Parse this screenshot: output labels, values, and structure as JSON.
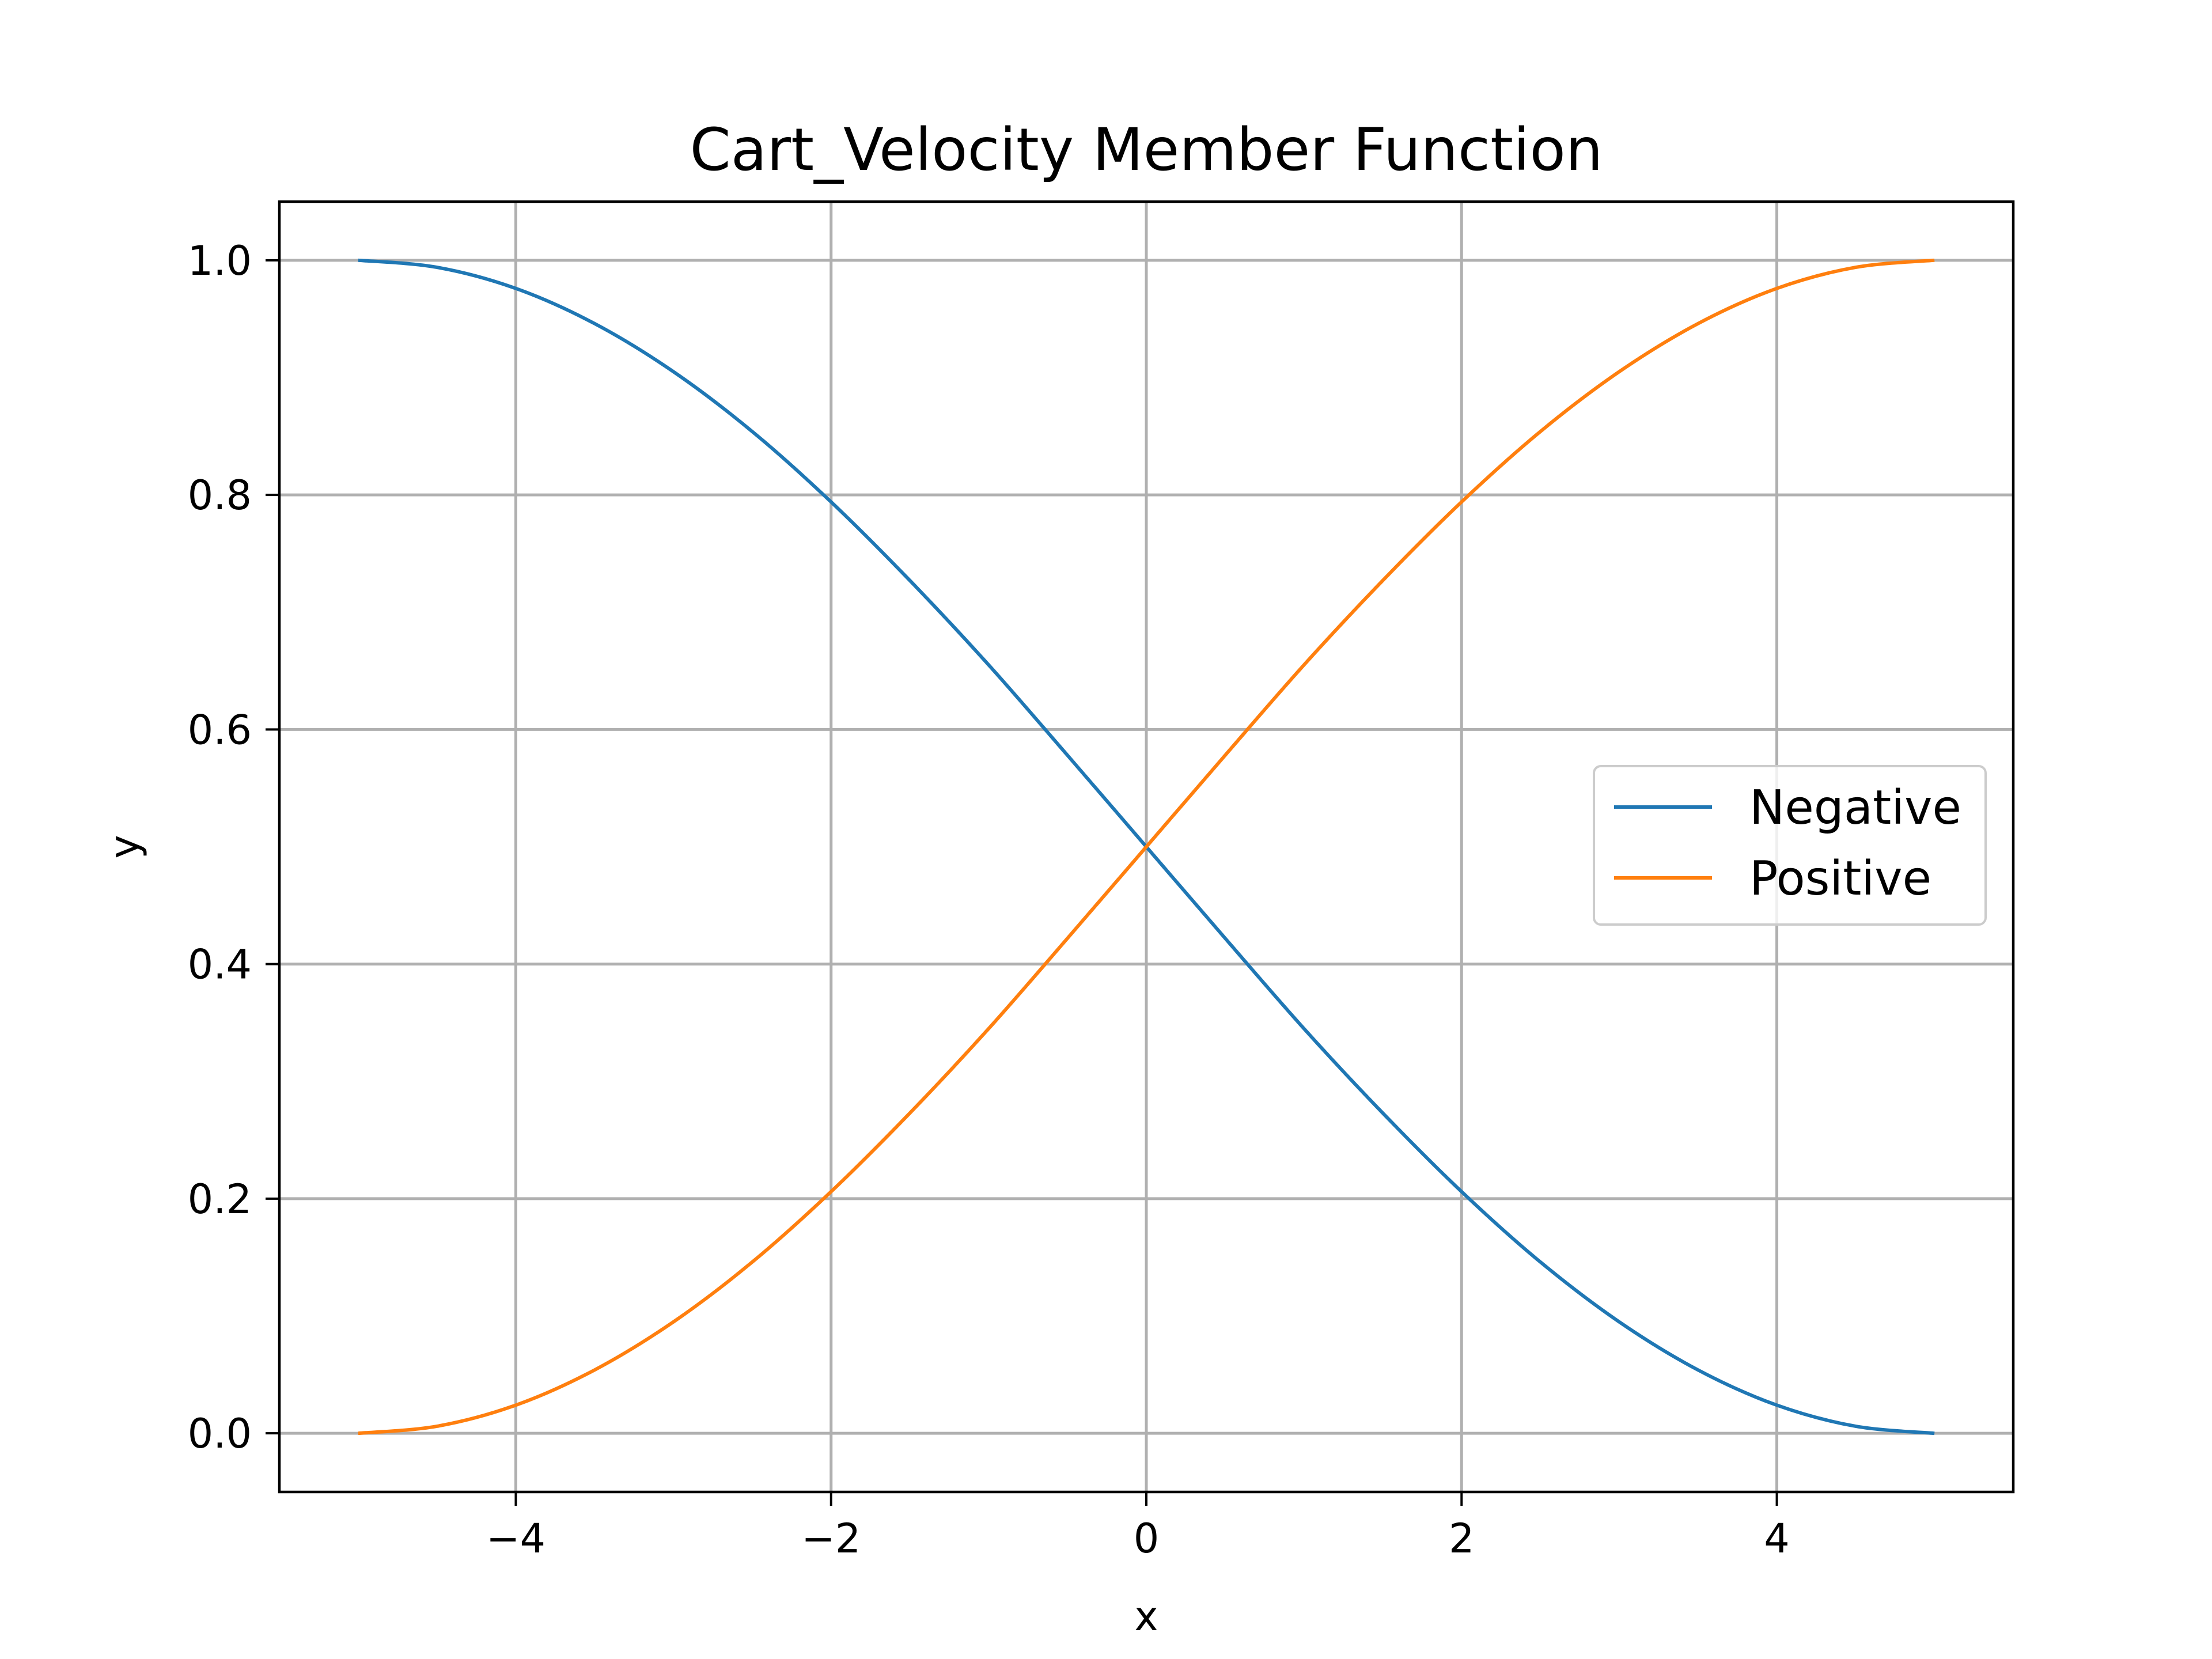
{
  "chart_data": {
    "type": "line",
    "title": "Cart_Velocity Member Function",
    "xlabel": "x",
    "ylabel": "y",
    "xlim": [
      -5.5,
      5.5
    ],
    "ylim": [
      -0.05,
      1.05
    ],
    "grid": true,
    "legend_position": "center-right",
    "x_ticks": [
      -4,
      -2,
      0,
      2,
      4
    ],
    "x_tick_labels": [
      "−4",
      "−2",
      "0",
      "2",
      "4"
    ],
    "y_ticks": [
      0.0,
      0.2,
      0.4,
      0.6,
      0.8,
      1.0
    ],
    "y_tick_labels": [
      "0.0",
      "0.2",
      "0.4",
      "0.6",
      "0.8",
      "1.0"
    ],
    "x": [
      -5.0,
      -4.5,
      -4.0,
      -3.5,
      -3.0,
      -2.5,
      -2.0,
      -1.5,
      -1.0,
      -0.5,
      0.0,
      0.5,
      1.0,
      1.5,
      2.0,
      2.5,
      3.0,
      3.5,
      4.0,
      4.5,
      5.0
    ],
    "series": [
      {
        "name": "Negative",
        "color": "#1f77b4",
        "values": [
          1.0,
          0.994,
          0.976,
          0.946,
          0.905,
          0.854,
          0.794,
          0.727,
          0.655,
          0.578,
          0.5,
          0.422,
          0.345,
          0.273,
          0.206,
          0.146,
          0.095,
          0.054,
          0.024,
          0.006,
          0.0
        ]
      },
      {
        "name": "Positive",
        "color": "#ff7f0e",
        "values": [
          0.0,
          0.006,
          0.024,
          0.054,
          0.095,
          0.146,
          0.206,
          0.273,
          0.345,
          0.422,
          0.5,
          0.578,
          0.655,
          0.727,
          0.794,
          0.854,
          0.905,
          0.946,
          0.976,
          0.994,
          1.0
        ]
      }
    ]
  }
}
